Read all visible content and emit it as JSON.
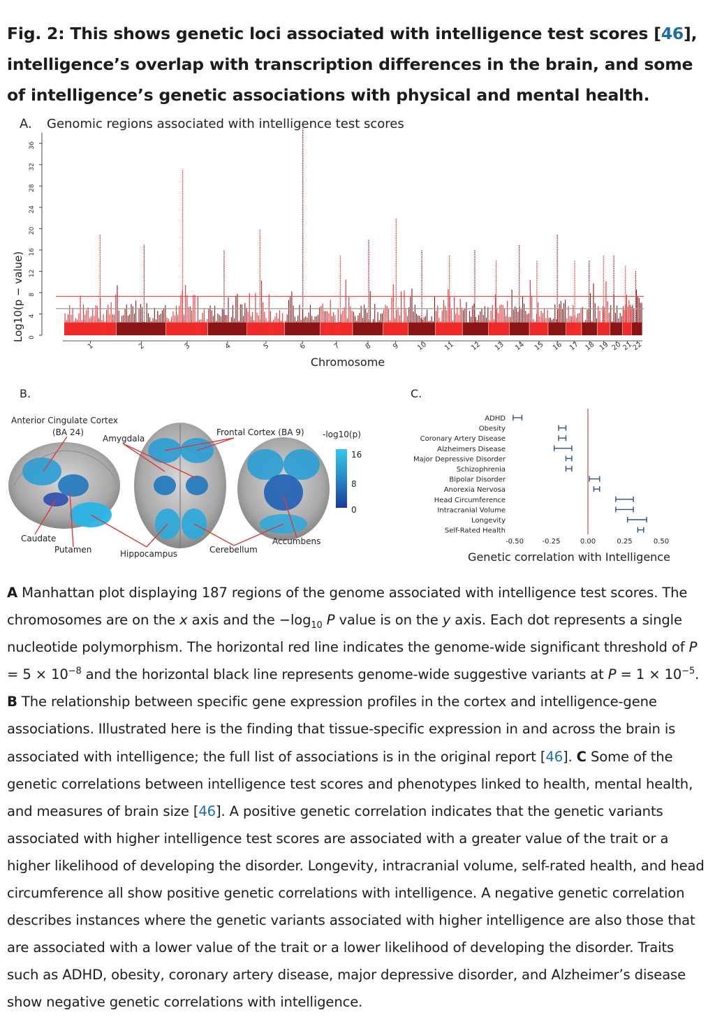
{
  "caption": {
    "title_part1": "Fig. 2: This shows genetic loci associated with intelligence test scores [",
    "title_ref": "46",
    "title_part2": "], intelligence’s overlap with transcription differences in the brain, and some of intelligence’s genetic associations with physical and mental health."
  },
  "panel_a": {
    "letter": "A.",
    "title": "Genomic regions associated with intelligence test scores",
    "ylabel": "Log10(p − value)",
    "xlabel": "Chromosome"
  },
  "panel_b": {
    "letter": "B.",
    "labels": {
      "acc": "Anterior Cingulate Cortex",
      "acc2": "(BA 24)",
      "amygdala": "Amygdala",
      "frontal": "Frontal Cortex (BA 9)",
      "caudate": "Caudate",
      "putamen": "Putamen",
      "hippocampus": "Hippocampus",
      "cerebellum": "Cerebellum",
      "accumbens": "Accumbens"
    },
    "colorbar": {
      "title": "-log10(p)",
      "ticks": [
        "16",
        "8",
        "0"
      ]
    }
  },
  "panel_c": {
    "letter": "C.",
    "xlabel": "Genetic correlation with Intelligence"
  },
  "chart_data": [
    {
      "type": "scatter",
      "title": "Genomic regions associated with intelligence test scores",
      "xlabel": "Chromosome",
      "ylabel": "Log10(p − value)",
      "ylim": [
        0,
        38
      ],
      "y_ticks": [
        0,
        4,
        8,
        12,
        16,
        20,
        24,
        28,
        32,
        36
      ],
      "categories": [
        "1",
        "2",
        "3",
        "4",
        "5",
        "6",
        "7",
        "8",
        "9",
        "10",
        "11",
        "12",
        "13",
        "14",
        "15",
        "16",
        "17",
        "18",
        "19",
        "20",
        "21",
        "22"
      ],
      "peak_values": [
        19,
        17,
        31,
        16,
        20,
        39,
        15,
        18,
        22,
        16,
        15,
        16,
        14,
        17,
        14,
        19,
        14,
        14,
        15,
        15,
        13,
        12
      ],
      "thresholds": [
        {
          "name": "genome-wide significant",
          "value": 7.3,
          "color": "#e04040"
        },
        {
          "name": "suggestive",
          "value": 5.0,
          "color": "#999999"
        }
      ],
      "colors": [
        "#ef2b2b",
        "#8b1414"
      ]
    },
    {
      "type": "scatter",
      "xlabel": "Genetic correlation with Intelligence",
      "xlim": [
        -0.5,
        0.5
      ],
      "x_ticks": [
        "-0.50",
        "-0.25",
        "0.00",
        "0.25",
        "0.50"
      ],
      "categories": [
        "ADHD",
        "Obesity",
        "Coronary Artery Disease",
        "Alzheimers Disease",
        "Major Depressive Disorder",
        "Schizophrenia",
        "Bipolar Disorder",
        "Anorexia Nervosa",
        "Head Circumference",
        "Intracranial Volume",
        "Longevity",
        "Self-Rated Health"
      ],
      "values": [
        -0.48,
        -0.18,
        -0.18,
        -0.17,
        -0.13,
        -0.13,
        0.04,
        0.06,
        0.25,
        0.25,
        0.33,
        0.36
      ],
      "err_low": [
        -0.51,
        -0.2,
        -0.2,
        -0.23,
        -0.15,
        -0.15,
        0.01,
        0.04,
        0.19,
        0.19,
        0.27,
        0.34
      ],
      "err_high": [
        -0.45,
        -0.15,
        -0.15,
        -0.11,
        -0.11,
        -0.11,
        0.08,
        0.08,
        0.31,
        0.31,
        0.4,
        0.38
      ],
      "line_color": "#d45c5c",
      "point_color": "#2f4e87"
    }
  ],
  "legend": {
    "a_lead": "A",
    "s1": " Manhattan plot displaying 187 regions of the genome associated with intelligence test scores. The chromosomes are on the ",
    "x_it": "x",
    "s2": " axis and the −log",
    "sub10": "10",
    "s3": " ",
    "p1_it": "P",
    "s4": " value is on the ",
    "y_it": "y",
    "s5": " axis. Each dot represents a single nucleotide polymorphism. The horizontal red line indicates the genome-wide significant threshold of ",
    "p2_it": "P",
    "s6": " = 5 × 10",
    "sup1": "−8",
    "s7": " and the horizontal black line represents genome-wide suggestive variants at ",
    "p3_it": "P",
    "s8": " = 1 × 10",
    "sup2": "−5",
    "s9": ". ",
    "b_lead": "B",
    "s10": " The relationship between specific gene expression profiles in the cortex and intelligence-gene associations. Illustrated here is the finding that tissue-specific expression in and across the brain is associated with intelligence; the full list of associations is in the original report [",
    "ref1": "46",
    "s11": "]. ",
    "c_lead": "C",
    "s12": " Some of the genetic correlations between intelligence test scores and phenotypes linked to health, mental health, and measures of brain size [",
    "ref2": "46",
    "s13": "]. A positive genetic correlation indicates that the genetic variants associated with higher intelligence test scores are associated with a greater value of the trait or a higher likelihood of developing the disorder. Longevity, intracranial volume, self-rated health, and head circumference all show positive genetic correlations with intelligence. A negative genetic correlation describes instances where the genetic variants associated with higher intelligence are also those that are associated with a lower value of the trait or a lower likelihood of developing the disorder. Traits such as ADHD, obesity, coronary artery disease, major depressive disorder, and Alzheimer’s disease show negative genetic correlations with intelligence."
  }
}
